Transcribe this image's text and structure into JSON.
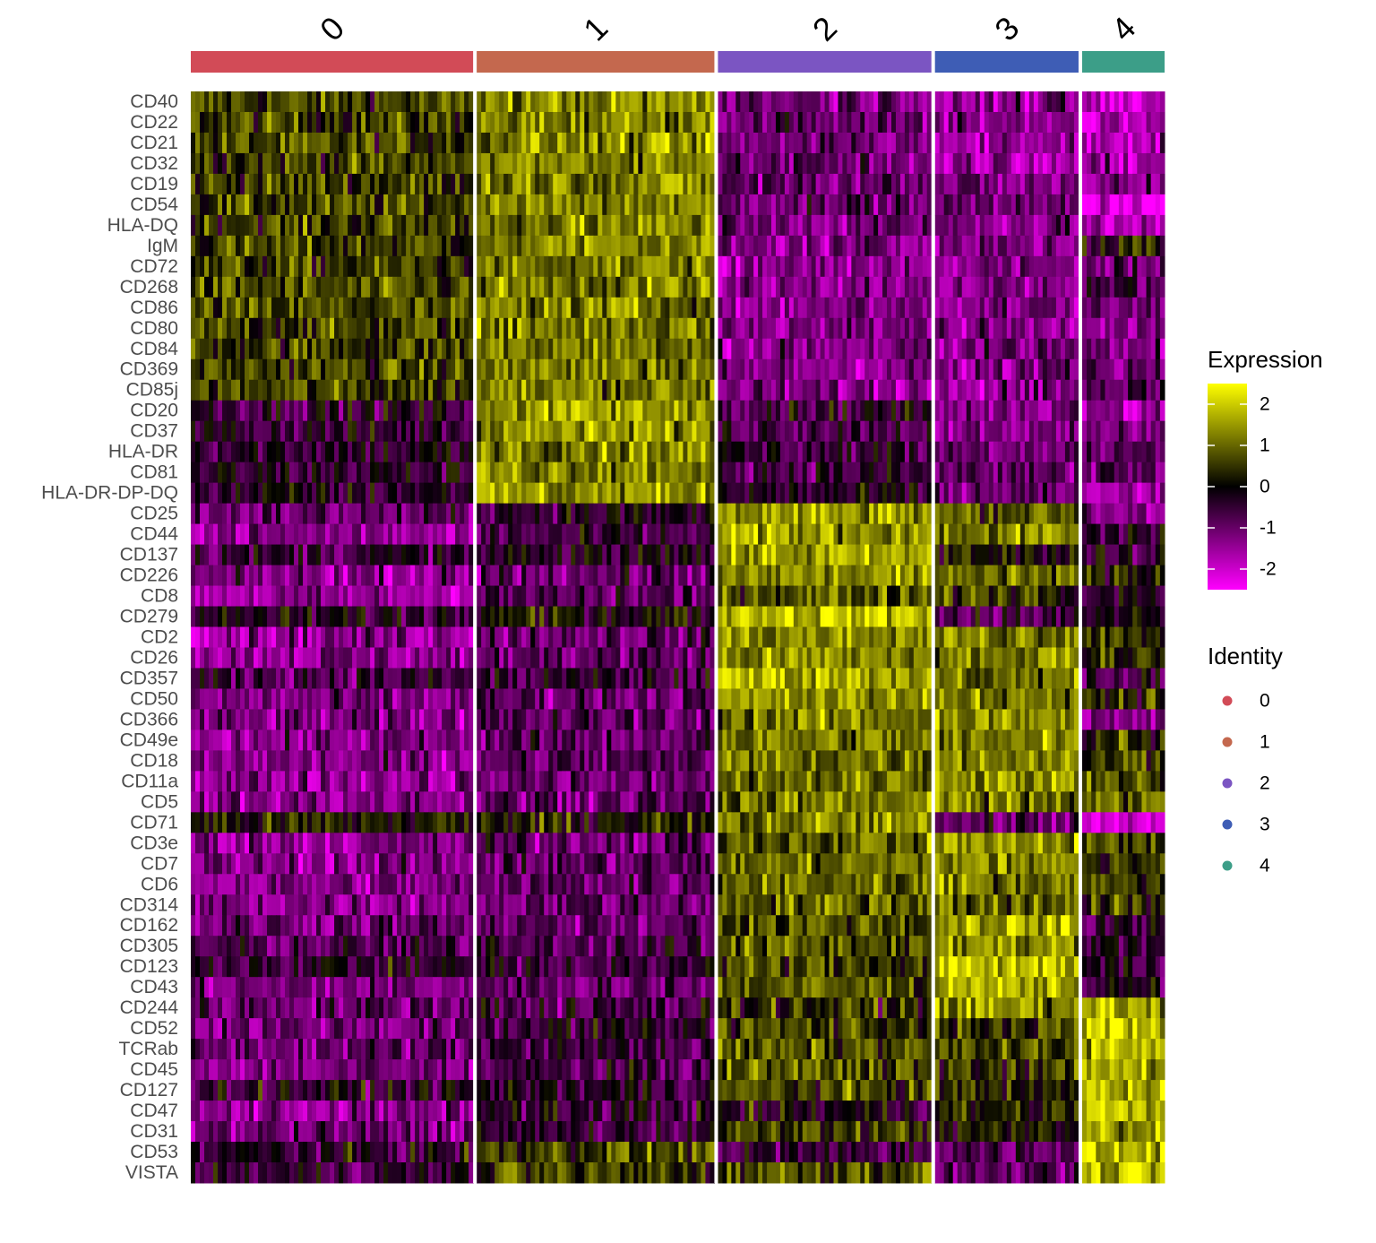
{
  "chart_data": {
    "type": "heatmap",
    "title": "",
    "xlabel": "",
    "ylabel": "",
    "clusters": [
      {
        "label": "0",
        "color": "#D24B57",
        "cell_fraction": 0.291
      },
      {
        "label": "1",
        "color": "#C4684E",
        "cell_fraction": 0.245
      },
      {
        "label": "2",
        "color": "#7B55C2",
        "cell_fraction": 0.22
      },
      {
        "label": "3",
        "color": "#3E5DB5",
        "cell_fraction": 0.148
      },
      {
        "label": "4",
        "color": "#3C9E88",
        "cell_fraction": 0.085
      }
    ],
    "features": [
      "CD40",
      "CD22",
      "CD21",
      "CD32",
      "CD19",
      "CD54",
      "HLA-DQ",
      "IgM",
      "CD72",
      "CD268",
      "CD86",
      "CD80",
      "CD84",
      "CD369",
      "CD85j",
      "CD20",
      "CD37",
      "HLA-DR",
      "CD81",
      "HLA-DR-DP-DQ",
      "CD25",
      "CD44",
      "CD137",
      "CD226",
      "CD8",
      "CD279",
      "CD2",
      "CD26",
      "CD357",
      "CD50",
      "CD366",
      "CD49e",
      "CD18",
      "CD11a",
      "CD5",
      "CD71",
      "CD3e",
      "CD7",
      "CD6",
      "CD314",
      "CD162",
      "CD305",
      "CD123",
      "CD43",
      "CD244",
      "CD52",
      "TCRab",
      "CD45",
      "CD127",
      "CD47",
      "CD31",
      "CD53",
      "VISTA"
    ],
    "mean_expression_by_cluster": [
      [
        0.6,
        1.3,
        -1.0,
        -1.4,
        -1.9
      ],
      [
        0.6,
        1.3,
        -1.0,
        -1.4,
        -1.8
      ],
      [
        0.6,
        1.3,
        -1.0,
        -1.4,
        -1.8
      ],
      [
        0.6,
        1.3,
        -1.0,
        -1.4,
        -1.5
      ],
      [
        0.6,
        1.3,
        -1.0,
        -1.3,
        -1.4
      ],
      [
        0.6,
        1.3,
        -0.9,
        -0.9,
        -2.4
      ],
      [
        0.6,
        1.2,
        -1.1,
        -1.2,
        -1.5
      ],
      [
        0.6,
        1.3,
        -1.3,
        -1.3,
        0.2
      ],
      [
        0.5,
        1.2,
        -1.3,
        -1.3,
        -1.0
      ],
      [
        0.6,
        1.2,
        -1.3,
        -1.3,
        -0.6
      ],
      [
        0.6,
        1.2,
        -1.2,
        -1.2,
        -1.2
      ],
      [
        0.6,
        1.2,
        -1.2,
        -1.3,
        -1.3
      ],
      [
        0.6,
        1.2,
        -1.2,
        -1.2,
        -1.1
      ],
      [
        0.6,
        1.2,
        -1.3,
        -1.3,
        -1.0
      ],
      [
        0.6,
        1.2,
        -1.3,
        -1.2,
        -0.6
      ],
      [
        -0.4,
        1.5,
        -0.3,
        -1.2,
        -1.6
      ],
      [
        -0.4,
        1.4,
        -0.5,
        -1.2,
        -1.0
      ],
      [
        -0.3,
        1.4,
        -0.5,
        -0.9,
        -0.9
      ],
      [
        -0.4,
        1.4,
        -0.5,
        -0.9,
        -0.7
      ],
      [
        -0.3,
        1.4,
        -0.4,
        -1.0,
        -1.7
      ],
      [
        -1.0,
        -0.3,
        1.4,
        0.9,
        -1.3
      ],
      [
        -1.3,
        -0.7,
        1.5,
        1.2,
        -0.3
      ],
      [
        -0.5,
        -0.4,
        1.5,
        0.2,
        -0.6
      ],
      [
        -1.3,
        -0.9,
        1.3,
        0.9,
        0.3
      ],
      [
        -1.5,
        -0.9,
        0.9,
        0.7,
        -0.2
      ],
      [
        -0.3,
        0.1,
        2.0,
        -0.6,
        -0.3
      ],
      [
        -1.3,
        -0.9,
        1.3,
        1.3,
        0.5
      ],
      [
        -1.3,
        -0.9,
        1.3,
        1.3,
        0.5
      ],
      [
        -0.6,
        -0.5,
        1.8,
        1.0,
        -0.7
      ],
      [
        -1.3,
        -0.9,
        1.3,
        1.3,
        0.4
      ],
      [
        -1.3,
        -0.9,
        1.2,
        1.3,
        -1.4
      ],
      [
        -1.3,
        -0.9,
        1.1,
        1.1,
        0.4
      ],
      [
        -1.3,
        -0.9,
        1.1,
        1.2,
        0.6
      ],
      [
        -1.3,
        -0.9,
        1.1,
        1.3,
        0.6
      ],
      [
        -1.3,
        -0.9,
        1.1,
        1.2,
        1.0
      ],
      [
        0.2,
        0.2,
        1.2,
        -0.9,
        -2.2
      ],
      [
        -1.3,
        -0.9,
        1.0,
        1.3,
        0.6
      ],
      [
        -1.3,
        -0.9,
        1.0,
        1.3,
        0.5
      ],
      [
        -1.3,
        -0.9,
        1.0,
        1.2,
        0.5
      ],
      [
        -1.2,
        -0.9,
        1.0,
        1.0,
        0.3
      ],
      [
        -1.0,
        -0.9,
        0.8,
        1.7,
        -0.5
      ],
      [
        -0.8,
        -0.7,
        0.8,
        1.4,
        -0.3
      ],
      [
        -0.3,
        -0.5,
        0.6,
        1.9,
        -0.4
      ],
      [
        -1.2,
        -0.9,
        0.8,
        1.6,
        -0.3
      ],
      [
        -0.9,
        -0.7,
        0.4,
        1.4,
        1.6
      ],
      [
        -1.1,
        -0.4,
        0.6,
        0.6,
        2.0
      ],
      [
        -1.0,
        -0.6,
        0.7,
        0.6,
        1.7
      ],
      [
        -1.2,
        -0.7,
        0.8,
        0.5,
        1.6
      ],
      [
        -0.3,
        -0.3,
        0.6,
        0.4,
        1.8
      ],
      [
        -1.4,
        -0.4,
        -0.2,
        0.2,
        2.0
      ],
      [
        -1.1,
        -0.5,
        0.5,
        0.1,
        1.6
      ],
      [
        -0.4,
        0.7,
        -0.6,
        -0.7,
        1.8
      ],
      [
        -0.5,
        0.5,
        0.8,
        -0.8,
        1.7
      ]
    ],
    "color_scale": {
      "min": -2.5,
      "max": 2.5,
      "stops": [
        {
          "value": -2.5,
          "color": "#FF00FF"
        },
        {
          "value": 0,
          "color": "#000000"
        },
        {
          "value": 2.5,
          "color": "#FFFF00"
        }
      ],
      "breaks": [
        "2",
        "1",
        "0",
        "-1",
        "-2"
      ],
      "break_values": [
        2,
        1,
        0,
        -1,
        -2
      ]
    },
    "legends": {
      "expression_title": "Expression",
      "identity_title": "Identity",
      "identity_items": [
        "0",
        "1",
        "2",
        "3",
        "4"
      ]
    },
    "legend_placement": "right",
    "grid": false
  }
}
